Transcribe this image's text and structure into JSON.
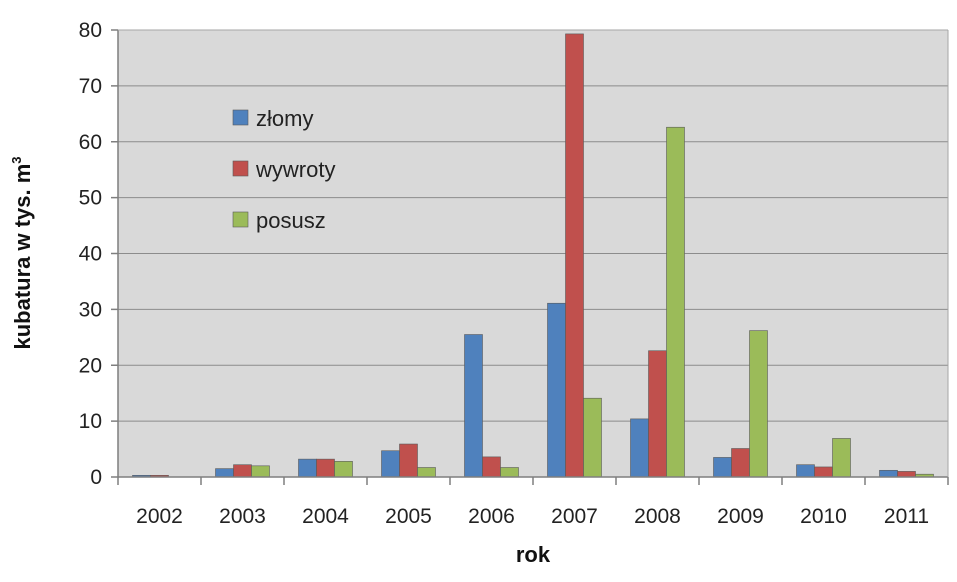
{
  "chart_data": {
    "type": "bar",
    "title": "",
    "xlabel": "rok",
    "ylabel": {
      "main": "kubatura w tys. m",
      "sup": "3"
    },
    "ylim": [
      0,
      80
    ],
    "yticks": [
      0,
      10,
      20,
      30,
      40,
      50,
      60,
      70,
      80
    ],
    "grid": true,
    "legend_position": "top-left inside plot",
    "categories": [
      "2002",
      "2003",
      "2004",
      "2005",
      "2006",
      "2007",
      "2008",
      "2009",
      "2010",
      "2011"
    ],
    "series": [
      {
        "name": "złomy",
        "color": "#4f81bd",
        "values": [
          0.3,
          1.5,
          3.2,
          4.7,
          25.5,
          31.1,
          10.4,
          3.5,
          2.2,
          1.2
        ]
      },
      {
        "name": "wywroty",
        "color": "#c0504d",
        "values": [
          0.3,
          2.2,
          3.2,
          5.9,
          3.6,
          79.3,
          22.6,
          5.1,
          1.8,
          1.0
        ]
      },
      {
        "name": "posusz",
        "color": "#9bbb59",
        "values": [
          0.0,
          2.0,
          2.8,
          1.7,
          1.7,
          14.1,
          62.6,
          26.2,
          6.9,
          0.5
        ]
      }
    ]
  }
}
